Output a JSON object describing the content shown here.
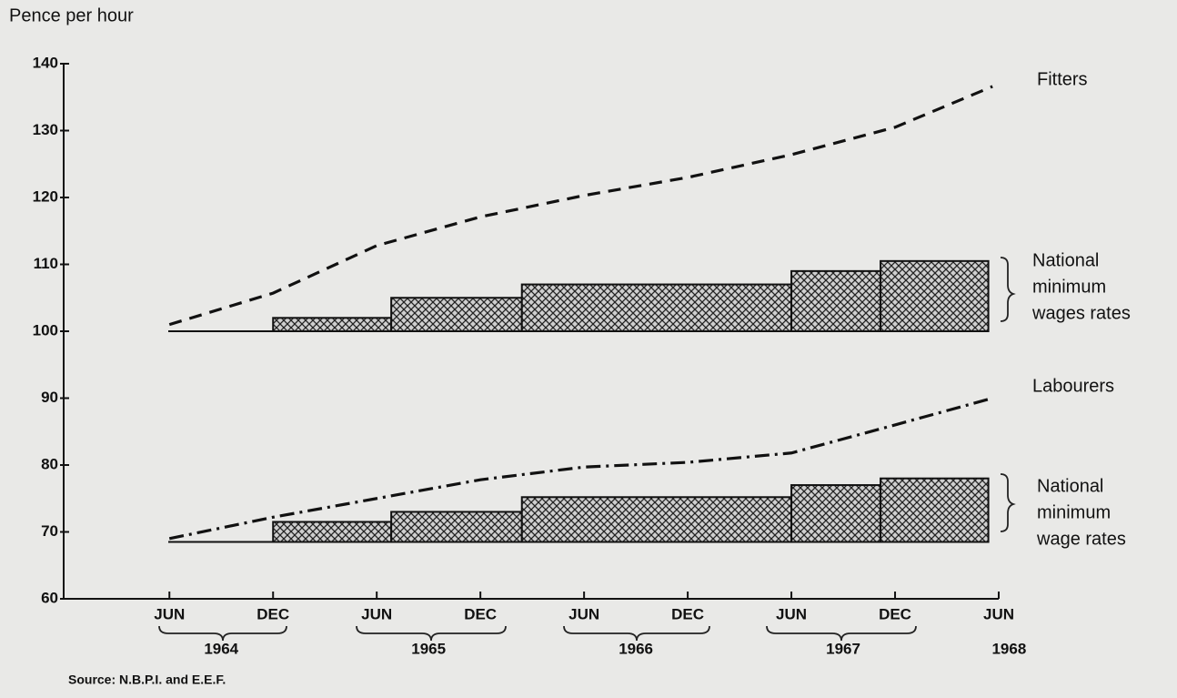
{
  "chart_data": {
    "type": "line",
    "y_label": "Pence per hour",
    "source": "Source: N.B.P.I. and E.E.F.",
    "ylim": [
      60,
      140
    ],
    "yticks": [
      60,
      70,
      80,
      90,
      100,
      110,
      120,
      130,
      140
    ],
    "xlim": [
      1963.94,
      1968.45
    ],
    "xticks": [
      {
        "value": 1964.45,
        "label": "JUN"
      },
      {
        "value": 1964.95,
        "label": "DEC"
      },
      {
        "value": 1965.45,
        "label": "JUN"
      },
      {
        "value": 1965.95,
        "label": "DEC"
      },
      {
        "value": 1966.45,
        "label": "JUN"
      },
      {
        "value": 1966.95,
        "label": "DEC"
      },
      {
        "value": 1967.45,
        "label": "JUN"
      },
      {
        "value": 1967.95,
        "label": "DEC"
      },
      {
        "value": 1968.45,
        "label": "JUN"
      }
    ],
    "year_labels": [
      {
        "value": 1964.7,
        "label": "1964"
      },
      {
        "value": 1965.7,
        "label": "1965"
      },
      {
        "value": 1966.7,
        "label": "1966"
      },
      {
        "value": 1967.7,
        "label": "1967"
      },
      {
        "value": 1968.5,
        "label": "1968"
      }
    ],
    "series": [
      {
        "name": "Fitters",
        "type": "line",
        "dash": "dashed",
        "color": "#111111",
        "x": [
          1964.45,
          1964.95,
          1965.45,
          1965.95,
          1966.45,
          1966.95,
          1967.45,
          1967.95,
          1968.42
        ],
        "values": [
          101,
          105.7,
          112.8,
          117.1,
          120.3,
          123,
          126.4,
          130.5,
          136.6
        ]
      },
      {
        "name": "Labourers",
        "type": "line",
        "dash": "dashdot",
        "color": "#111111",
        "x": [
          1964.45,
          1964.95,
          1965.45,
          1965.95,
          1966.45,
          1966.95,
          1967.45,
          1967.95,
          1968.42
        ],
        "values": [
          69,
          72.2,
          75,
          77.8,
          79.7,
          80.4,
          81.8,
          86,
          90
        ]
      },
      {
        "label_lines": [
          "National",
          "minimum",
          "wages rates"
        ],
        "type": "step",
        "base": 100,
        "color": "#111111",
        "edges": [
          1964.95,
          1965.52,
          1966.15,
          1967.45,
          1967.88,
          1968.4
        ],
        "values": [
          102,
          105,
          107,
          109,
          110.5
        ]
      },
      {
        "label_lines": [
          "National",
          "minimum",
          "wage rates"
        ],
        "type": "step",
        "base": 68.5,
        "color": "#111111",
        "edges": [
          1964.95,
          1965.52,
          1966.15,
          1967.45,
          1967.88,
          1968.4
        ],
        "values": [
          71.5,
          73,
          75.2,
          77,
          78
        ]
      }
    ]
  }
}
